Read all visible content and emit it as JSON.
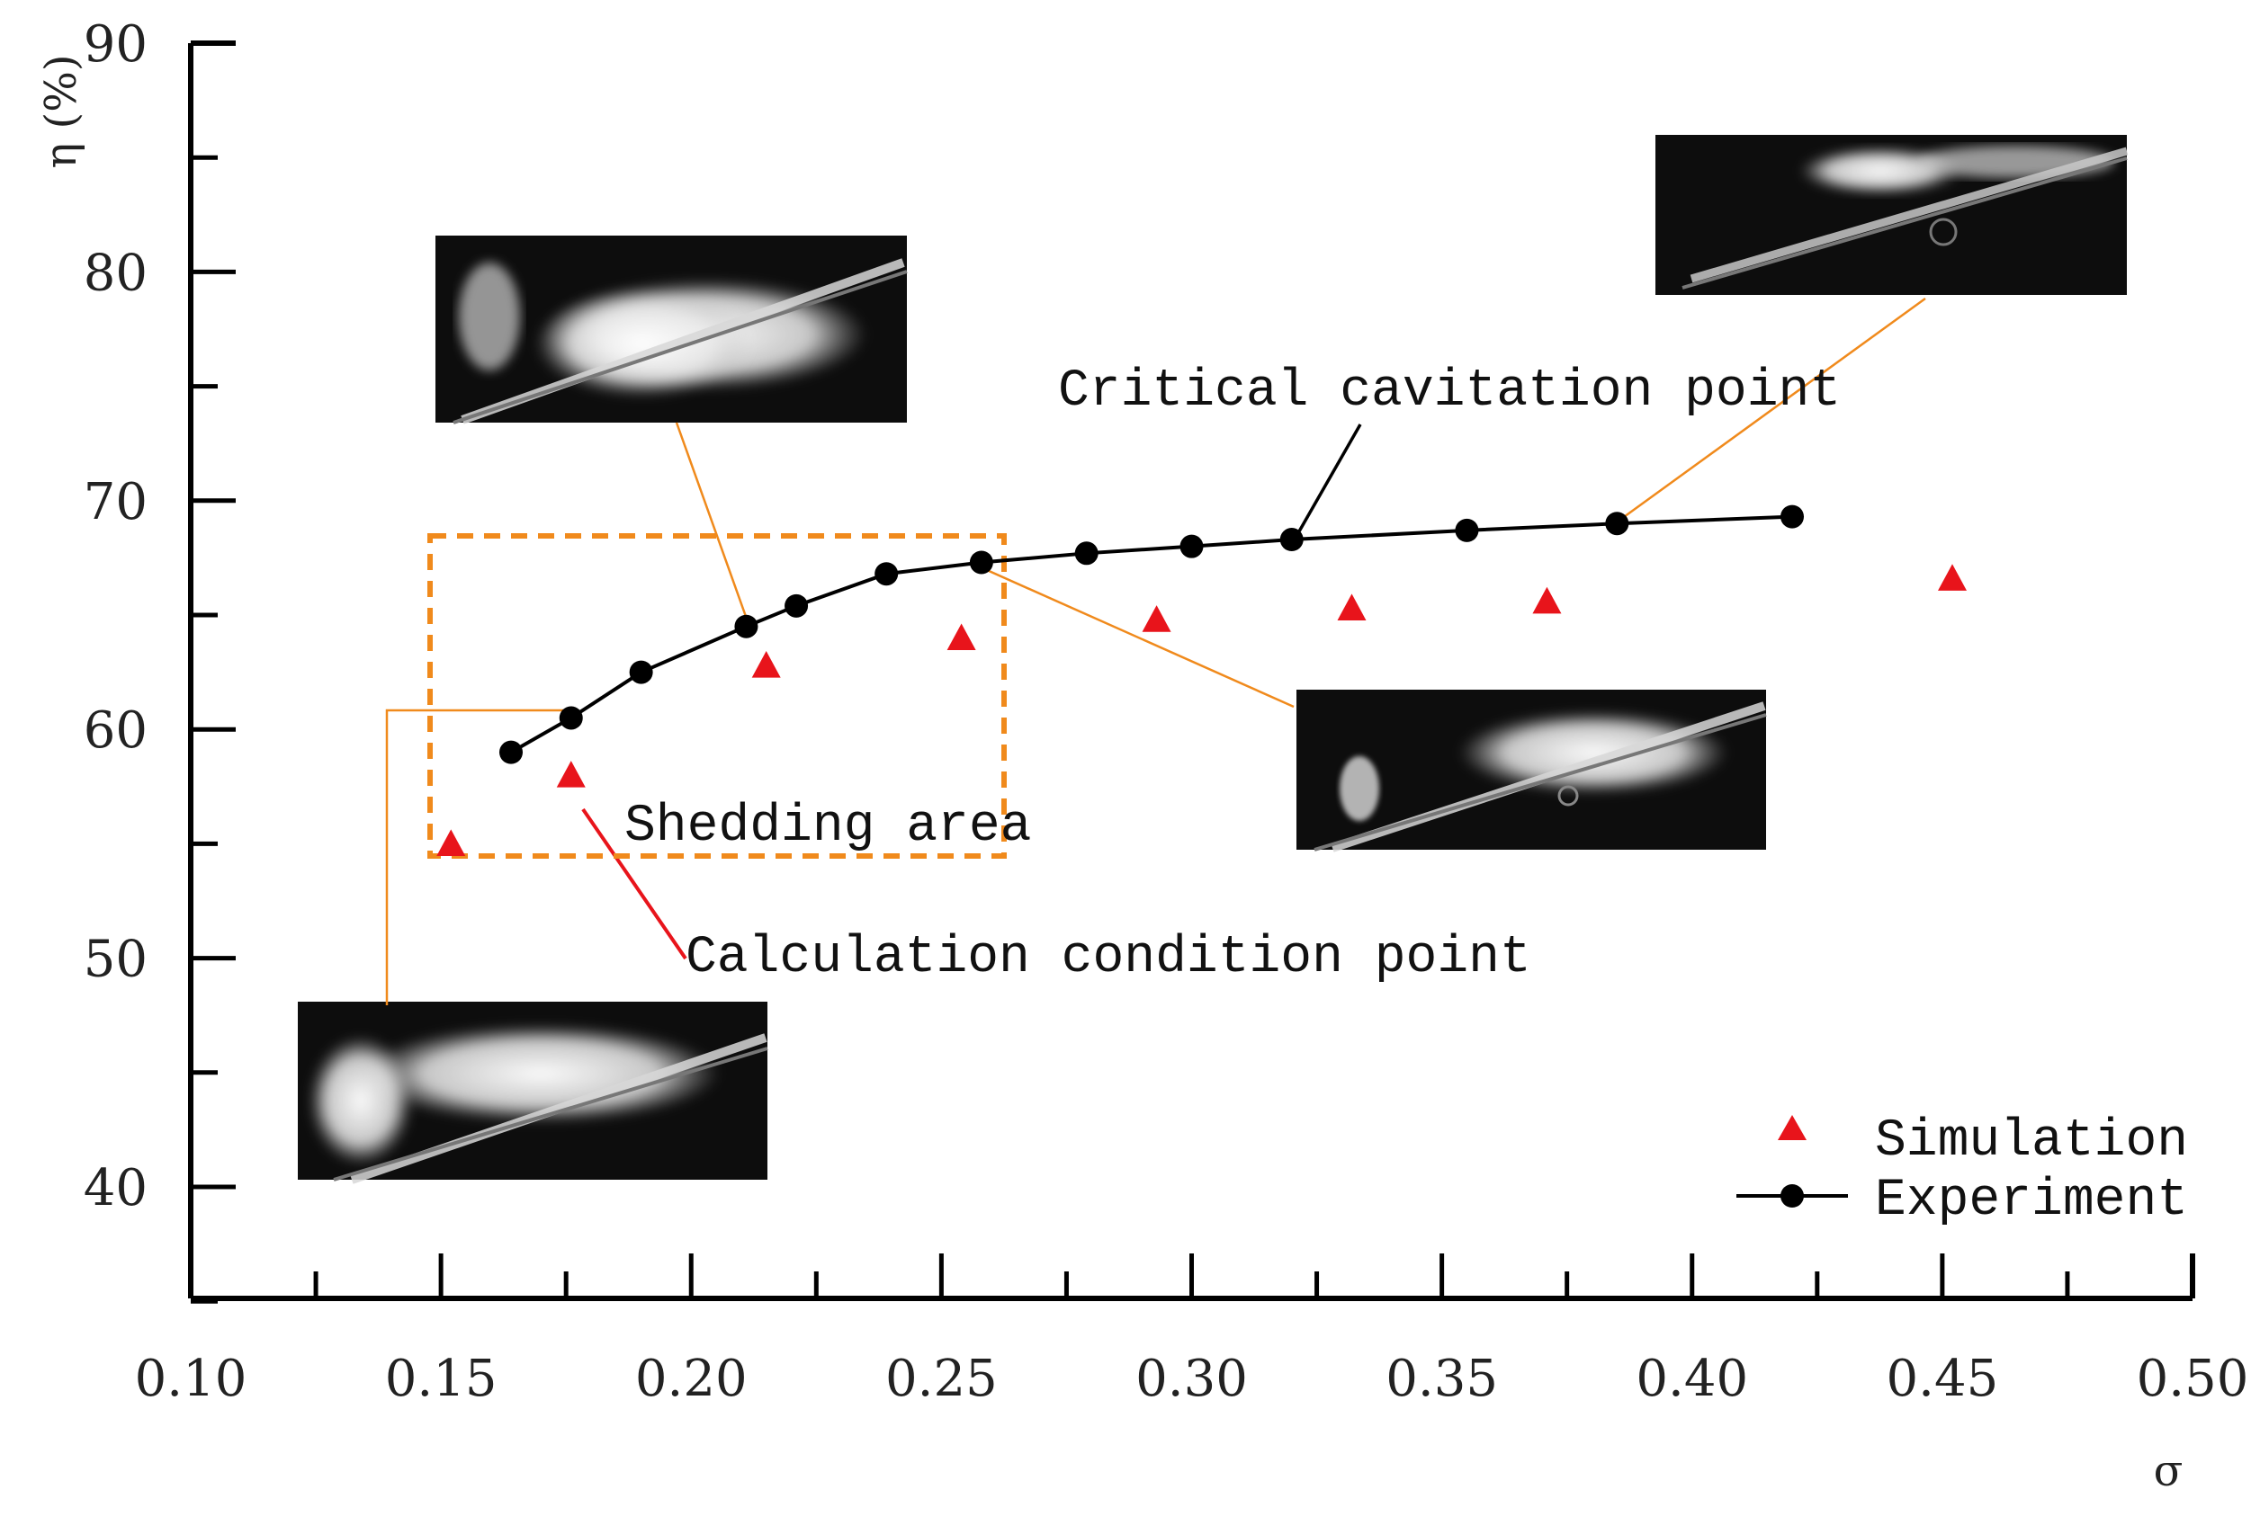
{
  "chart_data": {
    "type": "scatter",
    "title": "",
    "xlabel": "σ",
    "ylabel": "η (%)",
    "xlim": [
      0.1,
      0.5
    ],
    "ylim": [
      35,
      90
    ],
    "x_ticks": [
      0.1,
      0.15,
      0.2,
      0.25,
      0.3,
      0.35,
      0.4,
      0.45,
      0.5
    ],
    "x_tick_labels": [
      "0.10",
      "0.15",
      "0.20",
      "0.25",
      "0.30",
      "0.35",
      "0.40",
      "0.45",
      "0.50"
    ],
    "y_ticks": [
      40,
      50,
      60,
      70,
      80,
      90
    ],
    "y_tick_labels": [
      "40",
      "50",
      "60",
      "70",
      "80",
      "90"
    ],
    "series": [
      {
        "name": "Simulation",
        "marker": "triangle",
        "color": "#e8141b",
        "x": [
          0.152,
          0.176,
          0.215,
          0.254,
          0.293,
          0.332,
          0.371,
          0.452
        ],
        "y": [
          55.0,
          58.0,
          62.8,
          64.0,
          64.8,
          65.3,
          65.6,
          66.6
        ]
      },
      {
        "name": "Experiment",
        "marker": "circle-line",
        "color": "#000000",
        "x": [
          0.164,
          0.176,
          0.19,
          0.211,
          0.221,
          0.239,
          0.258,
          0.279,
          0.3,
          0.32,
          0.355,
          0.385,
          0.42
        ],
        "y": [
          59.0,
          60.5,
          62.5,
          64.5,
          65.4,
          66.8,
          67.3,
          67.7,
          68.0,
          68.3,
          68.7,
          69.0,
          69.3
        ]
      }
    ],
    "annotations": {
      "shedding_area": {
        "label": "Shedding area",
        "x_range": [
          0.148,
          0.265
        ],
        "y_range": [
          54.5,
          68.5
        ],
        "color": "#f08a1c"
      },
      "critical_point": {
        "label": "Critical cavitation point",
        "x": 0.32,
        "y": 68.3
      },
      "calculation_point": {
        "label": "Calculation condition point",
        "x": 0.176,
        "y": 58.0,
        "color": "#e8141b"
      }
    },
    "legend": {
      "position": "bottom-right",
      "entries": [
        "Simulation",
        "Experiment"
      ]
    },
    "grid": false
  },
  "colors": {
    "axis": "#000000",
    "orange": "#f08a1c",
    "red": "#e8141b",
    "photo_bg": "#0c0c0c",
    "photo_cloud": "#f2f2f2"
  }
}
